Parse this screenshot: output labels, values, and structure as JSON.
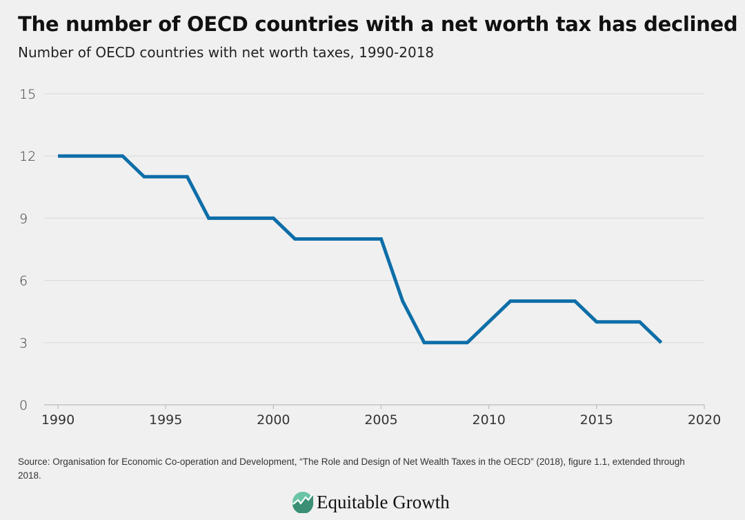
{
  "title": "The number of OECD countries with a net worth tax has declined",
  "subtitle": "Number of OECD countries with net worth taxes, 1990-2018",
  "source": "Source: Organisation for Economic Co-operation and Development, “The Role and Design of Net Wealth Taxes in the OECD” (2018), figure 1.1, extended through 2018.",
  "logo_text": "Equitable Growth",
  "colors": {
    "line": "#0e6ea8",
    "grid": "#dcdcdc",
    "background": "#f0f0f0",
    "logo_light": "#6cc4a6",
    "logo_dark": "#3a8f75"
  },
  "chart_data": {
    "type": "line",
    "title": "The number of OECD countries with a net worth tax has declined",
    "subtitle": "Number of OECD countries with net worth taxes, 1990-2018",
    "xlabel": "",
    "ylabel": "",
    "xlim": [
      1990,
      2020
    ],
    "ylim": [
      0,
      15
    ],
    "xticks": [
      1990,
      1995,
      2000,
      2005,
      2010,
      2015,
      2020
    ],
    "yticks": [
      0,
      3,
      6,
      9,
      12,
      15
    ],
    "grid": "horizontal",
    "x": [
      1990,
      1991,
      1992,
      1993,
      1994,
      1995,
      1996,
      1997,
      1998,
      1999,
      2000,
      2001,
      2002,
      2003,
      2004,
      2005,
      2006,
      2007,
      2008,
      2009,
      2010,
      2011,
      2012,
      2013,
      2014,
      2015,
      2016,
      2017,
      2018
    ],
    "y": [
      12,
      12,
      12,
      12,
      11,
      11,
      11,
      9,
      9,
      9,
      9,
      8,
      8,
      8,
      8,
      8,
      5,
      3,
      3,
      3,
      4,
      5,
      5,
      5,
      5,
      4,
      4,
      4,
      3
    ]
  }
}
